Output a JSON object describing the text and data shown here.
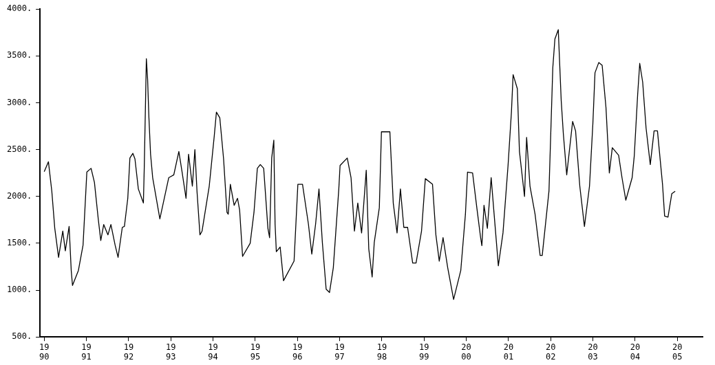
{
  "chart_data": {
    "type": "line",
    "marker": "none",
    "line_style": "solid",
    "legend": false,
    "xlim": [
      1989.9,
      2005.6
    ],
    "ylim": [
      500,
      4000
    ],
    "xticks": [
      1990,
      1991,
      1992,
      1993,
      1994,
      1995,
      1996,
      1997,
      1998,
      1999,
      2000,
      2001,
      2002,
      2003,
      2004,
      2005
    ],
    "yticks": [
      {
        "value": 500,
        "label": "500."
      },
      {
        "value": 1000,
        "label": "1000."
      },
      {
        "value": 1500,
        "label": "1500."
      },
      {
        "value": 2000,
        "label": "2000."
      },
      {
        "value": 2500,
        "label": "2500."
      },
      {
        "value": 3000,
        "label": "3000."
      },
      {
        "value": 3500,
        "label": "3500."
      },
      {
        "value": 4000,
        "label": "4000."
      }
    ],
    "series": [
      {
        "color": "#000000",
        "x": [
          1990.0,
          1990.1,
          1990.18,
          1990.25,
          1990.34,
          1990.44,
          1990.5,
          1990.59,
          1990.64,
          1990.67,
          1990.81,
          1990.92,
          1991.01,
          1991.11,
          1991.19,
          1991.28,
          1991.34,
          1991.41,
          1991.51,
          1991.58,
          1991.68,
          1991.75,
          1991.85,
          1991.9,
          1991.98,
          1992.03,
          1992.1,
          1992.15,
          1992.23,
          1992.35,
          1992.37,
          1992.42,
          1992.45,
          1992.48,
          1992.52,
          1992.57,
          1992.74,
          1992.95,
          1993.07,
          1993.19,
          1993.27,
          1993.36,
          1993.42,
          1993.51,
          1993.57,
          1993.62,
          1993.69,
          1993.74,
          1993.91,
          1994.03,
          1994.08,
          1994.16,
          1994.25,
          1994.33,
          1994.36,
          1994.41,
          1994.5,
          1994.58,
          1994.63,
          1994.7,
          1994.88,
          1994.97,
          1995.05,
          1995.12,
          1995.2,
          1995.3,
          1995.34,
          1995.39,
          1995.44,
          1995.47,
          1995.5,
          1995.59,
          1995.67,
          1995.92,
          1996.01,
          1996.12,
          1996.26,
          1996.34,
          1996.43,
          1996.51,
          1996.59,
          1996.68,
          1996.76,
          1996.85,
          1996.98,
          1997.01,
          1997.18,
          1997.27,
          1997.35,
          1997.43,
          1997.52,
          1997.63,
          1997.69,
          1997.77,
          1997.82,
          1997.94,
          1997.99,
          1998.19,
          1998.27,
          1998.36,
          1998.44,
          1998.52,
          1998.61,
          1998.73,
          1998.81,
          1998.94,
          1999.03,
          1999.2,
          1999.28,
          1999.36,
          1999.45,
          1999.56,
          1999.7,
          1999.87,
          1999.98,
          2000.03,
          2000.15,
          2000.25,
          2000.34,
          2000.37,
          2000.42,
          2000.5,
          2000.59,
          2000.66,
          2000.76,
          2000.87,
          2000.99,
          2001.07,
          2001.11,
          2001.21,
          2001.26,
          2001.38,
          2001.43,
          2001.51,
          2001.63,
          2001.75,
          2001.8,
          2001.96,
          2002.05,
          2002.1,
          2002.18,
          2002.25,
          2002.3,
          2002.38,
          2002.52,
          2002.59,
          2002.69,
          2002.8,
          2002.92,
          2003.0,
          2003.05,
          2003.14,
          2003.22,
          2003.31,
          2003.36,
          2003.39,
          2003.46,
          2003.61,
          2003.69,
          2003.78,
          2003.93,
          2003.98,
          2004.06,
          2004.11,
          2004.18,
          2004.26,
          2004.36,
          2004.45,
          2004.53,
          2004.65,
          2004.7,
          2004.78,
          2004.87,
          2004.95
        ],
        "values": [
          2265,
          2370,
          2055,
          1660,
          1350,
          1630,
          1420,
          1680,
          1210,
          1050,
          1210,
          1480,
          2260,
          2300,
          2150,
          1760,
          1530,
          1700,
          1590,
          1700,
          1480,
          1350,
          1670,
          1680,
          1980,
          2410,
          2460,
          2400,
          2080,
          1930,
          2300,
          3470,
          3250,
          2850,
          2450,
          2200,
          1760,
          2200,
          2230,
          2480,
          2250,
          1980,
          2450,
          2110,
          2500,
          2055,
          1590,
          1630,
          2110,
          2650,
          2900,
          2840,
          2400,
          1830,
          1810,
          2130,
          1905,
          1980,
          1855,
          1360,
          1500,
          1830,
          2300,
          2340,
          2300,
          1660,
          1560,
          2410,
          2600,
          1705,
          1410,
          1460,
          1100,
          1310,
          2130,
          2130,
          1705,
          1385,
          1705,
          2080,
          1510,
          1010,
          975,
          1240,
          2080,
          2330,
          2410,
          2200,
          1630,
          1930,
          1610,
          2280,
          1440,
          1140,
          1510,
          1880,
          2690,
          2690,
          1930,
          1610,
          2080,
          1670,
          1670,
          1290,
          1290,
          1630,
          2190,
          2130,
          1590,
          1310,
          1560,
          1240,
          900,
          1210,
          1810,
          2260,
          2250,
          1880,
          1560,
          1475,
          1905,
          1660,
          2200,
          1810,
          1260,
          1610,
          2330,
          2900,
          3300,
          3150,
          2480,
          2000,
          2630,
          2110,
          1810,
          1370,
          1370,
          2060,
          3370,
          3680,
          3780,
          3020,
          2670,
          2230,
          2800,
          2700,
          2110,
          1680,
          2110,
          2780,
          3320,
          3430,
          3400,
          2950,
          2520,
          2250,
          2520,
          2440,
          2200,
          1960,
          2200,
          2430,
          3080,
          3420,
          3220,
          2730,
          2340,
          2700,
          2700,
          2130,
          1790,
          1780,
          2030,
          2055
        ]
      }
    ]
  }
}
